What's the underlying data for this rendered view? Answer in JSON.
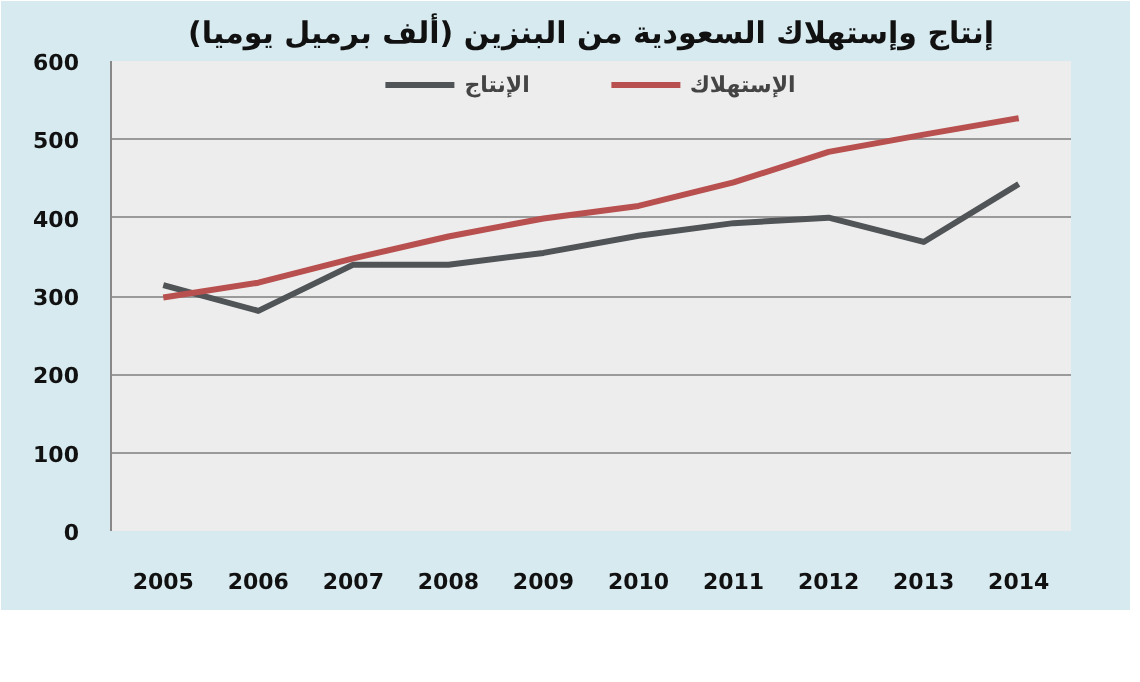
{
  "chart_data": {
    "type": "line",
    "title": "إنتاج وإستهلاك السعودية من البنزين (ألف برميل يوميا)",
    "categories": [
      "2005",
      "2006",
      "2007",
      "2008",
      "2009",
      "2010",
      "2011",
      "2012",
      "2013",
      "2014"
    ],
    "series": [
      {
        "name": "الإنتاج",
        "color": "#505457",
        "values": [
          314,
          281,
          340,
          340,
          355,
          377,
          393,
          400,
          369,
          443
        ]
      },
      {
        "name": "الإستهلاك",
        "color": "#b8504f",
        "values": [
          298,
          317,
          348,
          376,
          399,
          415,
          445,
          484,
          506,
          527
        ]
      }
    ],
    "ylim": [
      0,
      600
    ],
    "yticks": [
      0,
      100,
      200,
      300,
      400,
      500,
      600
    ],
    "grid": "y",
    "legend": "top",
    "line_style": "solid",
    "marker": "none"
  }
}
